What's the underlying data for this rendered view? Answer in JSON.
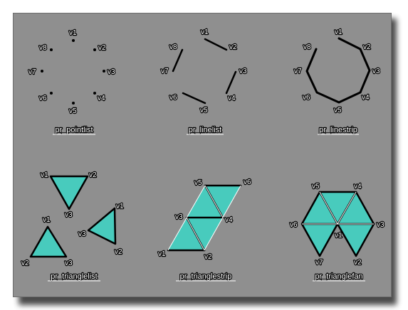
{
  "colors": {
    "panel": "#8f8f8f",
    "fill": "#48cbbd",
    "line": "#000000",
    "text": "#ffffff"
  },
  "diagrams": [
    {
      "caption": "pr_pointlist",
      "labels": [
        "v1",
        "v2",
        "v3",
        "v4",
        "v5",
        "v6",
        "v7",
        "v8"
      ]
    },
    {
      "caption": "pr_linelist",
      "labels": [
        "v1",
        "v2",
        "v3",
        "v4",
        "v5",
        "v6",
        "v7",
        "v8"
      ]
    },
    {
      "caption": "pr_linestrip",
      "labels": [
        "v1",
        "v2",
        "v3",
        "v4",
        "v5",
        "v6",
        "v7",
        "v8"
      ]
    },
    {
      "caption": "pr_trianglelist",
      "labels": [
        "v1",
        "v2",
        "v3",
        "v1",
        "v2",
        "v3",
        "v1",
        "v2",
        "v3"
      ]
    },
    {
      "caption": "pr_trianglestrip",
      "labels": [
        "v1",
        "v2",
        "v3",
        "v4",
        "v5",
        "v6"
      ]
    },
    {
      "caption": "pr_trianglefan",
      "labels": [
        "v1",
        "v2",
        "v3",
        "v4",
        "v5",
        "v6",
        "v7"
      ]
    }
  ]
}
